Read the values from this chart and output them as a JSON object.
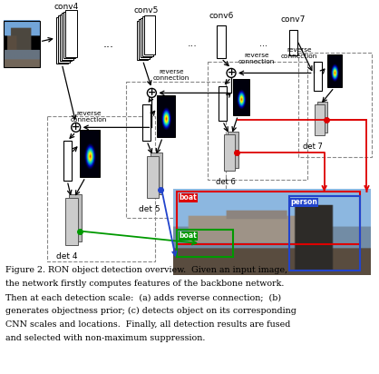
{
  "caption_lines": [
    "Figure 2. RON object detection overview.  Given an input image,",
    "the network firstly computes features of the backbone network.",
    "Then at each detection scale:  (a) adds reverse connection;  (b)",
    "generates objectness prior; (c) detects object on its corresponding",
    "CNN scales and locations.  Finally, all detection results are fused",
    "and selected with non-maximum suppression."
  ],
  "background_color": "#ffffff",
  "text_color": "#000000"
}
